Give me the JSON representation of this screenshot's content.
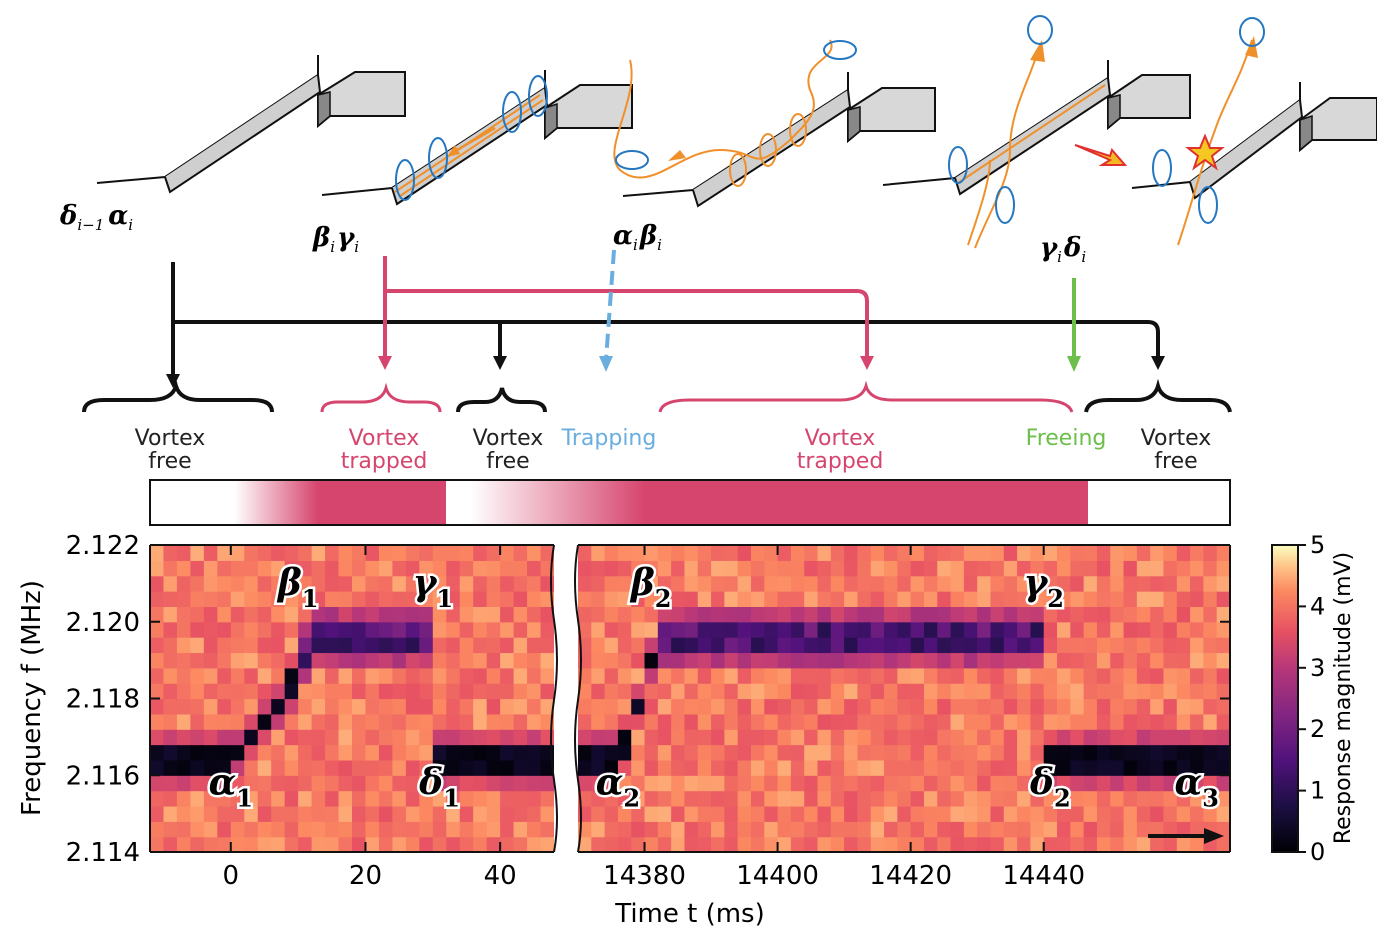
{
  "chart_data": {
    "type": "heatmap",
    "xlabel": "Time t (ms)",
    "ylabel": "Frequency f (MHz)",
    "ylim": [
      2.114,
      2.122
    ],
    "y_ticks": [
      "2.114",
      "2.116",
      "2.118",
      "2.120",
      "2.122"
    ],
    "x_ticks_left": [
      "0",
      "20",
      "40"
    ],
    "x_ticks_right": [
      "14380",
      "14400",
      "14420",
      "14440"
    ],
    "xlim_left": [
      -12,
      48
    ],
    "xlim_right": [
      14370,
      14468
    ],
    "colorbar": {
      "label": "Response magnitude (mV)",
      "range": [
        0,
        5
      ],
      "ticks": [
        "0",
        "1",
        "2",
        "3",
        "4",
        "5"
      ],
      "colormap": "magma"
    },
    "resonance_track_left": [
      {
        "t": -12,
        "f": 2.1164
      },
      {
        "t": 0,
        "f": 2.1164
      },
      {
        "t": 2,
        "f": 2.1168
      },
      {
        "t": 4,
        "f": 2.1172
      },
      {
        "t": 6,
        "f": 2.1176
      },
      {
        "t": 8,
        "f": 2.118
      },
      {
        "t": 10,
        "f": 2.1188
      },
      {
        "t": 12,
        "f": 2.1196
      },
      {
        "t": 30,
        "f": 2.1196
      },
      {
        "t": 31,
        "f": 2.1164
      },
      {
        "t": 48,
        "f": 2.1164
      }
    ],
    "resonance_track_right": [
      {
        "t": 14370,
        "f": 2.1164
      },
      {
        "t": 14376,
        "f": 2.1164
      },
      {
        "t": 14378,
        "f": 2.1172
      },
      {
        "t": 14380,
        "f": 2.1184
      },
      {
        "t": 14382,
        "f": 2.1196
      },
      {
        "t": 14440,
        "f": 2.1196
      },
      {
        "t": 14441,
        "f": 2.1164
      },
      {
        "t": 14468,
        "f": 2.1164
      }
    ],
    "event_labels": [
      {
        "sym": "α",
        "sub": "1",
        "t": 0,
        "f": 2.1155
      },
      {
        "sym": "β",
        "sub": "1",
        "t": 10,
        "f": 2.1207
      },
      {
        "sym": "γ",
        "sub": "1",
        "t": 30,
        "f": 2.1207
      },
      {
        "sym": "δ",
        "sub": "1",
        "t": 31,
        "f": 2.1155
      },
      {
        "sym": "α",
        "sub": "2",
        "t": 14376,
        "f": 2.1155
      },
      {
        "sym": "β",
        "sub": "2",
        "t": 14381,
        "f": 2.1207
      },
      {
        "sym": "γ",
        "sub": "2",
        "t": 14440,
        "f": 2.1207
      },
      {
        "sym": "δ",
        "sub": "2",
        "t": 14441,
        "f": 2.1155
      },
      {
        "sym": "α",
        "sub": "3",
        "t": 14463,
        "f": 2.1155
      }
    ]
  },
  "schematic": {
    "labels": [
      {
        "first": "δ",
        "first_sub": "i−1",
        "second": "α",
        "second_sub": "i"
      },
      {
        "first": "β",
        "first_sub": "i",
        "second": "γ",
        "second_sub": "i"
      },
      {
        "first": "α",
        "first_sub": "i",
        "second": "β",
        "second_sub": "i"
      },
      {
        "first": "γ",
        "first_sub": "i",
        "second": "δ",
        "second_sub": "i"
      }
    ]
  },
  "states": [
    {
      "line1": "Vortex",
      "line2": "free",
      "color": "#222222"
    },
    {
      "line1": "Vortex",
      "line2": "trapped",
      "color": "#d6456e"
    },
    {
      "line1": "Vortex",
      "line2": "free",
      "color": "#222222"
    },
    {
      "line1": "Trapping",
      "line2": "",
      "color": "#6aaee0"
    },
    {
      "line1": "Vortex",
      "line2": "trapped",
      "color": "#d6456e"
    },
    {
      "line1": "Freeing",
      "line2": "",
      "color": "#6cbf4a"
    },
    {
      "line1": "Vortex",
      "line2": "free",
      "color": "#222222"
    }
  ],
  "colors": {
    "trapped": "#d6456e",
    "free": "#111111",
    "trapping": "#6aaee0",
    "freeing": "#6cbf4a",
    "orange": "#f0902a",
    "blue": "#2477c0"
  }
}
